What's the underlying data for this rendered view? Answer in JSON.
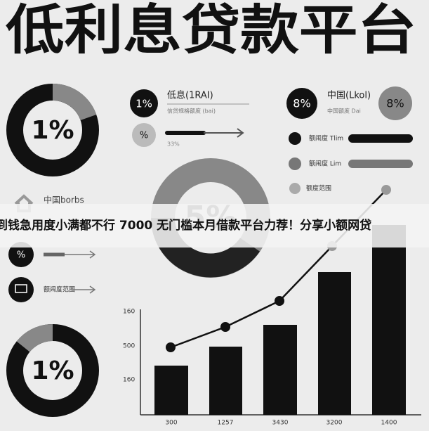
{
  "header": {
    "title": "低利息贷款平台"
  },
  "banner": {
    "text": "到钱急用度小满都不行 7000 无门槛本月借款平台力荐！分享小额网贷"
  },
  "donuts": [
    {
      "label": "1%"
    },
    {
      "label": "5%"
    },
    {
      "label": "1%"
    }
  ],
  "top_middle": {
    "badge": "1%",
    "title": "低息(1RAI)",
    "subtitle": "信贷规格额度 (bai)",
    "badge2": "%",
    "note": "33%"
  },
  "top_right": {
    "badge": "8%",
    "title": "中国(Lkol)",
    "subtitle": "中国额度 Dai",
    "badge2": "8%",
    "rows": [
      {
        "label": "额闹度 Tlim"
      },
      {
        "label": "额闹度 Lim"
      },
      {
        "label": "额度范围"
      }
    ]
  },
  "left_middle": {
    "title": "中国borbs",
    "badge": "%",
    "row2": "额闹度范围"
  },
  "bar_chart": {
    "y_labels": [
      "160",
      "500",
      "160"
    ],
    "x_labels": [
      "300",
      "1257",
      "3430",
      "3200",
      "1400"
    ]
  }
}
